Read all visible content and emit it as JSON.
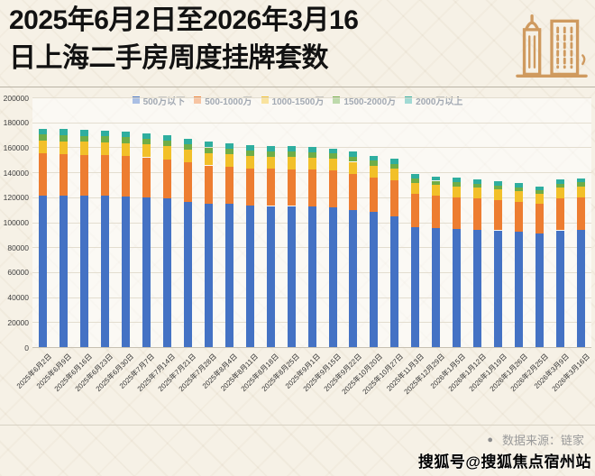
{
  "title": {
    "line1": "2025年6月2日至2026年3月16",
    "line2": "日上海二手房周度挂牌套数"
  },
  "icon_color": "#cf9a5f",
  "footer": {
    "bullet": "●",
    "source": "数据来源：链家",
    "watermark": "搜狐号@搜狐焦点宿州站"
  },
  "chart_data": {
    "type": "bar",
    "subtype": "stacked",
    "title": "2025年6月2日至2026年3月16日上海二手房周度挂牌套数",
    "xlabel": "",
    "ylabel": "",
    "ylim": [
      0,
      200000
    ],
    "ytick_step": 20000,
    "grid": true,
    "legend_position": "top",
    "categories": [
      "2025年6月2日",
      "2025年6月9日",
      "2025年6月16日",
      "2025年6月23日",
      "2025年6月30日",
      "2025年7月7日",
      "2025年7月14日",
      "2025年7月21日",
      "2025年7月28日",
      "2025年8月4日",
      "2025年8月11日",
      "2025年8月18日",
      "2025年8月25日",
      "2025年9月1日",
      "2025年9月15日",
      "2025年9月22日",
      "2025年10月20日",
      "2025年10月27日",
      "2025年11月3日",
      "2025年12月29日",
      "2026年1月5日",
      "2026年1月12日",
      "2026年1月19日",
      "2026年1月26日",
      "2026年2月25日",
      "2026年3月9日",
      "2026年3月16日"
    ],
    "series": [
      {
        "name": "500万以下",
        "color": "#4472c4",
        "values": [
          121500,
          121500,
          121000,
          121000,
          120500,
          120000,
          119000,
          116500,
          115000,
          114500,
          113500,
          113000,
          113000,
          112500,
          112000,
          110000,
          108000,
          105000,
          96000,
          95000,
          94500,
          94000,
          93500,
          92500,
          91000,
          93500,
          94000
        ]
      },
      {
        "name": "500-1000万",
        "color": "#ed7d31",
        "values": [
          33500,
          33000,
          33000,
          32500,
          32500,
          32000,
          31500,
          31500,
          30500,
          30000,
          29800,
          29800,
          29500,
          29500,
          29300,
          29000,
          28000,
          28500,
          26500,
          26000,
          25500,
          25000,
          24500,
          24000,
          23500,
          25500,
          26000
        ]
      },
      {
        "name": "1000-1500万",
        "color": "#f2c029",
        "values": [
          10500,
          10500,
          10500,
          10500,
          10400,
          10300,
          10300,
          10000,
          10000,
          9800,
          9800,
          9700,
          9600,
          9600,
          9500,
          9400,
          9200,
          9200,
          9000,
          8800,
          8700,
          8500,
          8300,
          8200,
          8000,
          8500,
          8600
        ]
      },
      {
        "name": "1500-2000万",
        "color": "#70ad47",
        "values": [
          4800,
          4700,
          4700,
          4700,
          4700,
          4600,
          4600,
          4500,
          4400,
          4400,
          4300,
          4300,
          4300,
          4200,
          4200,
          4100,
          4000,
          4000,
          3500,
          3400,
          3400,
          3300,
          3200,
          3200,
          3100,
          3300,
          3300
        ]
      },
      {
        "name": "2000万以上",
        "color": "#2fae9f",
        "values": [
          4800,
          4800,
          4700,
          4700,
          4700,
          4600,
          4600,
          4500,
          4400,
          4400,
          4300,
          4300,
          4300,
          4300,
          4200,
          4100,
          4000,
          4000,
          3500,
          3500,
          3400,
          3300,
          3300,
          3200,
          3100,
          3300,
          3400
        ]
      }
    ]
  }
}
